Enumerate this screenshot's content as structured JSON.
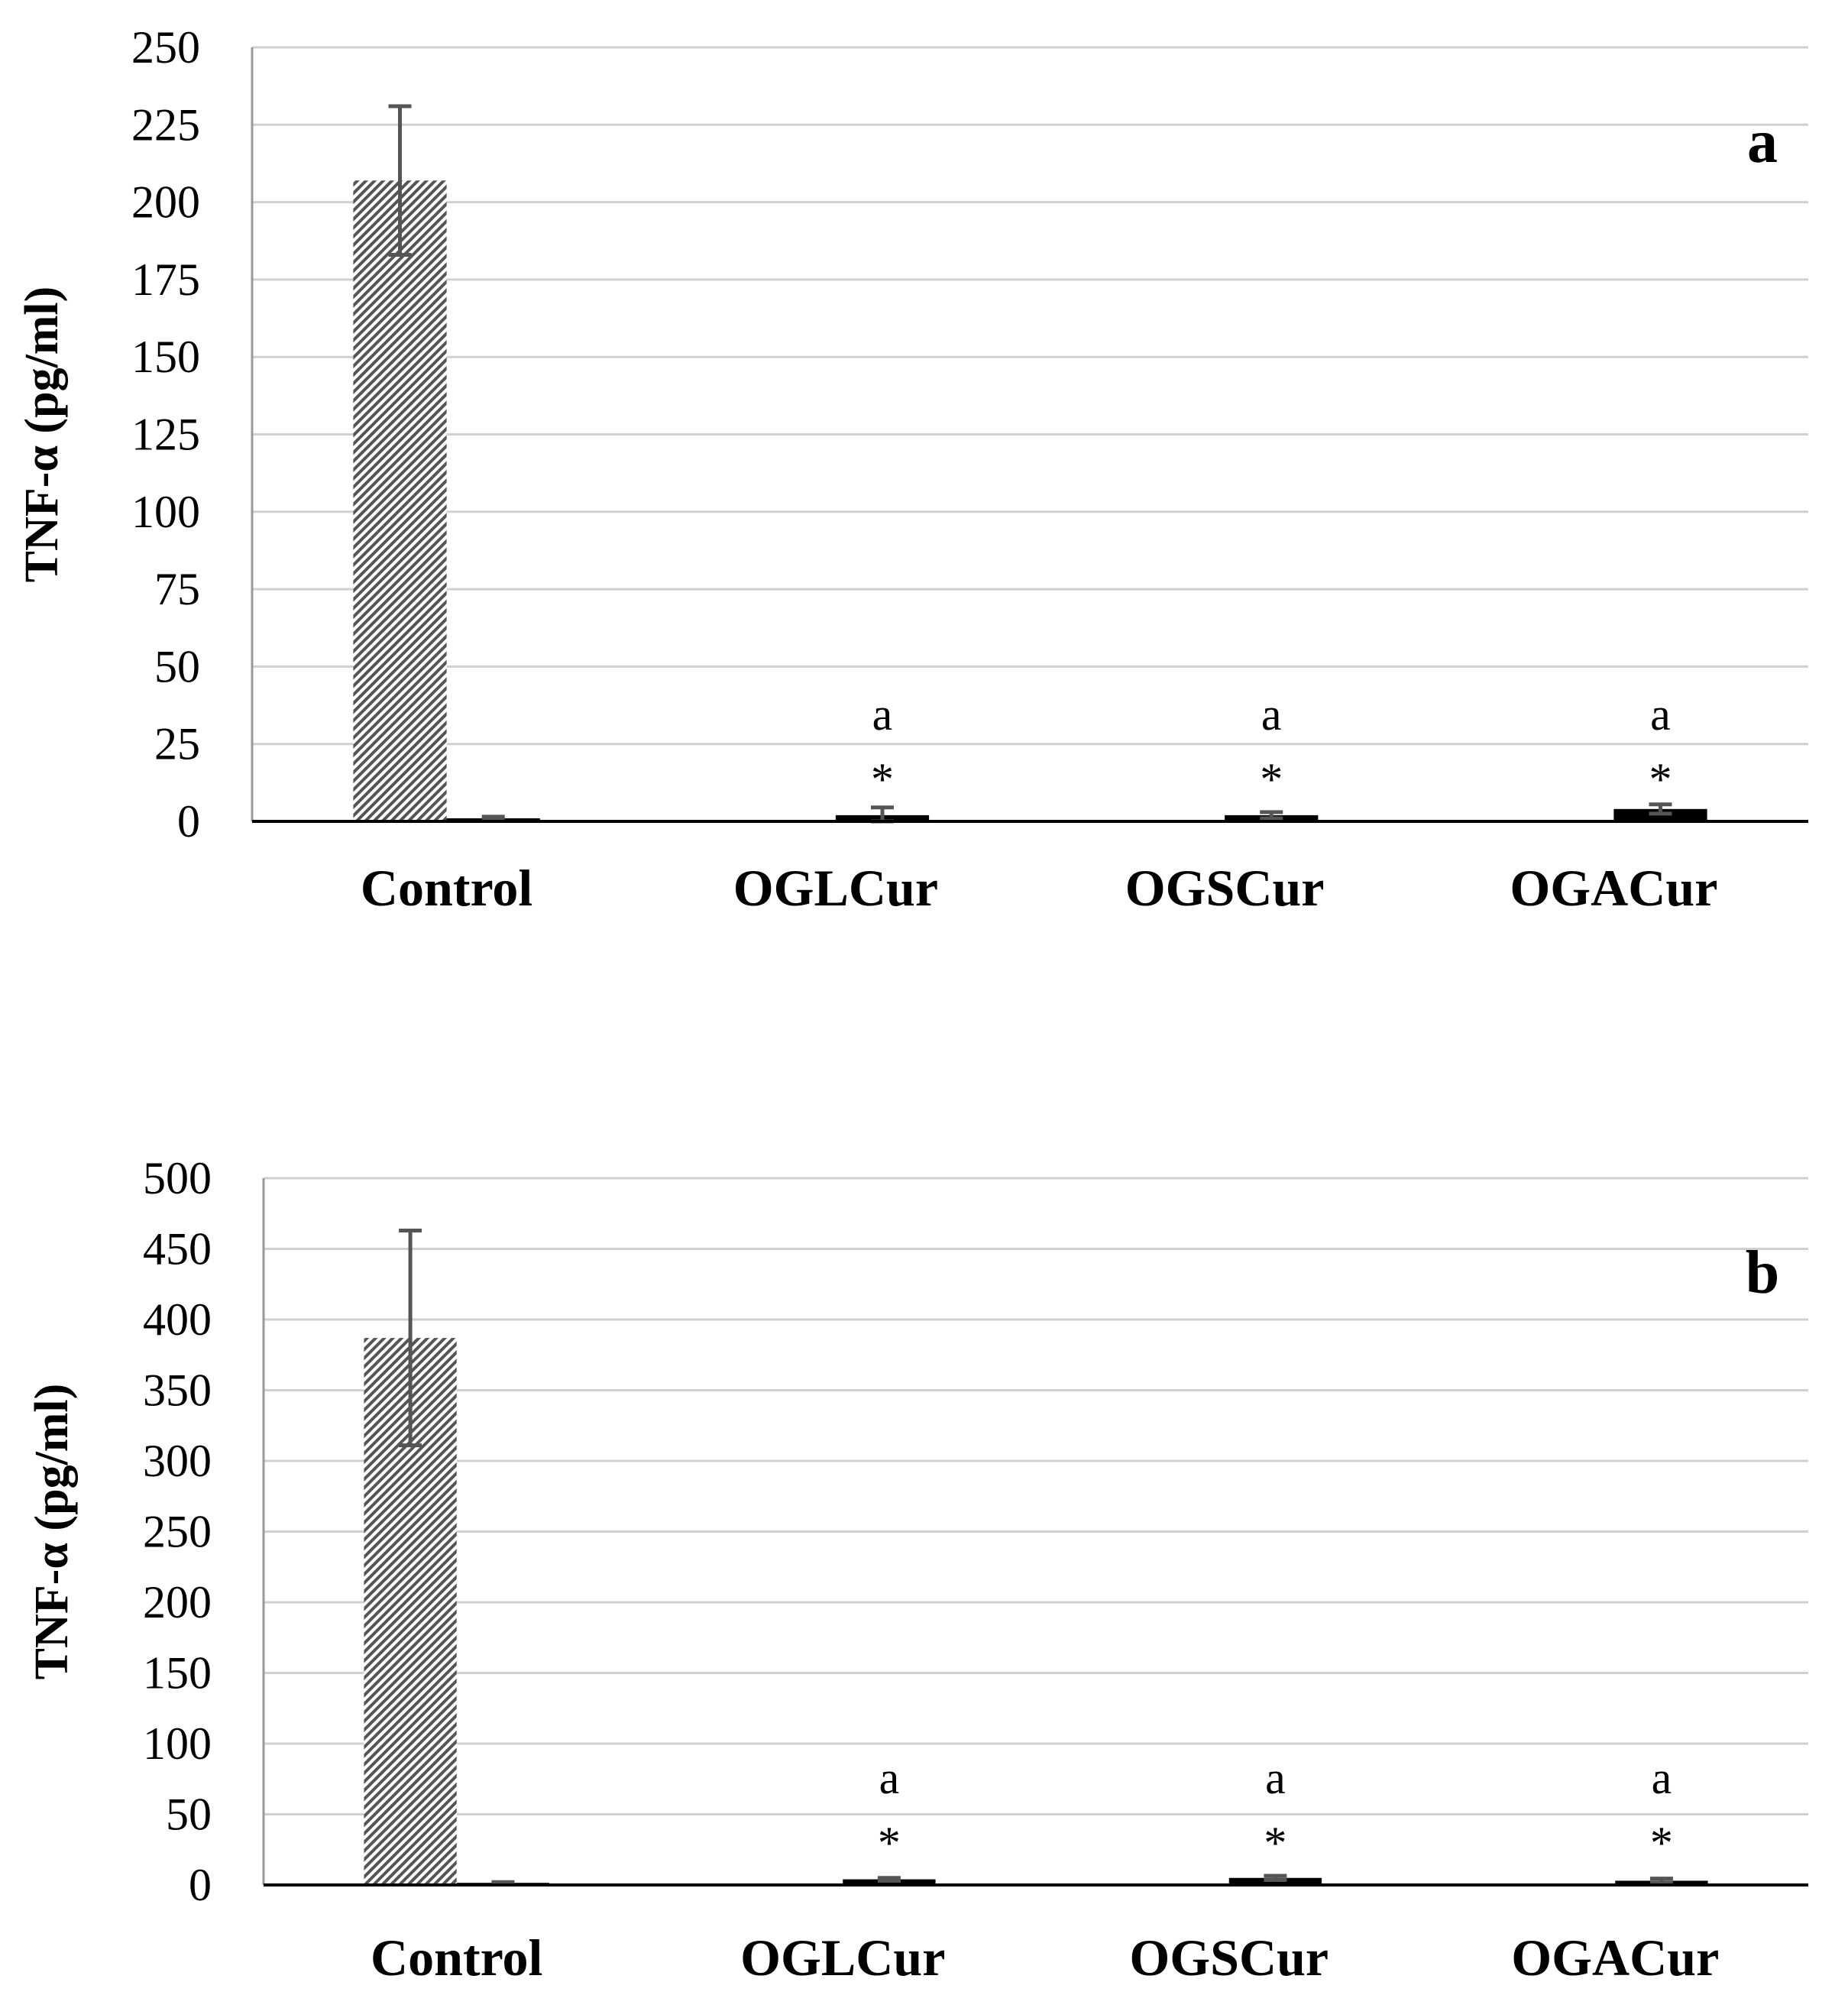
{
  "chart_data": [
    {
      "type": "bar",
      "panel_label": "a",
      "ylabel": "TNF-α (pg/ml)",
      "ylim": [
        0,
        250
      ],
      "yticks": [
        0,
        25,
        50,
        75,
        100,
        125,
        150,
        175,
        200,
        225,
        250
      ],
      "grid": true,
      "categories": [
        "Control",
        "OGLCur",
        "OGSCur",
        "OGACur"
      ],
      "series": [
        {
          "style": "hatched",
          "values": [
            207,
            null,
            null,
            null
          ],
          "errors": [
            24,
            null,
            null,
            null
          ]
        },
        {
          "style": "solid-black",
          "values": [
            1,
            2,
            2,
            4
          ],
          "errors": [
            0.5,
            2.5,
            1,
            1.5
          ]
        }
      ],
      "annotations": [
        {
          "category": "OGLCur",
          "marks": [
            "*",
            "a"
          ]
        },
        {
          "category": "OGSCur",
          "marks": [
            "*",
            "a"
          ]
        },
        {
          "category": "OGACur",
          "marks": [
            "*",
            "a"
          ]
        }
      ],
      "colors": {
        "hatch": "#555555",
        "solid": "#000000",
        "grid": "#d0d0d0"
      }
    },
    {
      "type": "bar",
      "panel_label": "b",
      "ylabel": "TNF-α (pg/ml)",
      "ylim": [
        0,
        500
      ],
      "yticks": [
        0,
        50,
        100,
        150,
        200,
        250,
        300,
        350,
        400,
        450,
        500
      ],
      "grid": true,
      "categories": [
        "Control",
        "OGLCur",
        "OGSCur",
        "OGACur"
      ],
      "series": [
        {
          "style": "hatched",
          "values": [
            387,
            null,
            null,
            null
          ],
          "errors": [
            76,
            null,
            null,
            null
          ]
        },
        {
          "style": "solid-black",
          "values": [
            1.5,
            4,
            5,
            3
          ],
          "errors": [
            0.5,
            1,
            1.5,
            1.5
          ]
        }
      ],
      "annotations": [
        {
          "category": "OGLCur",
          "marks": [
            "*",
            "a"
          ]
        },
        {
          "category": "OGSCur",
          "marks": [
            "*",
            "a"
          ]
        },
        {
          "category": "OGACur",
          "marks": [
            "*",
            "a"
          ]
        }
      ],
      "colors": {
        "hatch": "#555555",
        "solid": "#000000",
        "grid": "#d0d0d0"
      }
    }
  ]
}
